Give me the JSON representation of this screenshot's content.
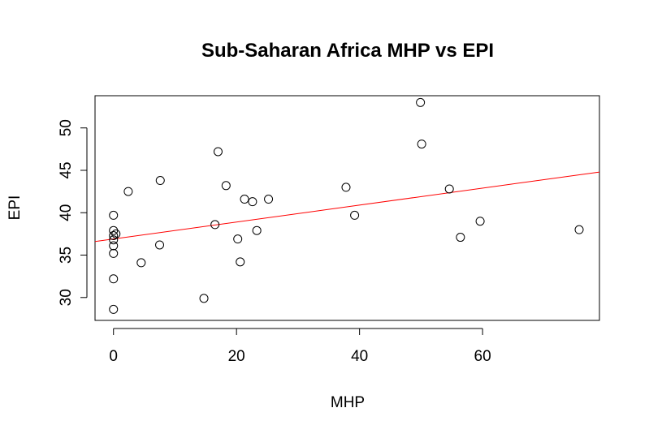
{
  "chart_data": {
    "type": "scatter",
    "title": "Sub-Saharan Africa MHP vs EPI",
    "xlabel": "MHP",
    "ylabel": "EPI",
    "xlim": [
      -3,
      79
    ],
    "ylim": [
      27.3,
      53.8
    ],
    "xticks": [
      0,
      20,
      40,
      60
    ],
    "yticks": [
      30,
      35,
      40,
      45,
      50
    ],
    "grid": false,
    "legend": "none",
    "points": [
      {
        "x": 0,
        "y": 28.6
      },
      {
        "x": 0,
        "y": 32.2
      },
      {
        "x": 0,
        "y": 35.2
      },
      {
        "x": 0,
        "y": 36.1
      },
      {
        "x": 0,
        "y": 36.8
      },
      {
        "x": 0,
        "y": 37.3
      },
      {
        "x": 0,
        "y": 37.9
      },
      {
        "x": 0,
        "y": 39.7
      },
      {
        "x": 0.4,
        "y": 37.5
      },
      {
        "x": 2.4,
        "y": 42.5
      },
      {
        "x": 4.5,
        "y": 34.1
      },
      {
        "x": 7.5,
        "y": 36.2
      },
      {
        "x": 7.6,
        "y": 43.8
      },
      {
        "x": 14.7,
        "y": 29.9
      },
      {
        "x": 16.5,
        "y": 38.6
      },
      {
        "x": 17.0,
        "y": 47.2
      },
      {
        "x": 18.3,
        "y": 43.2
      },
      {
        "x": 20.2,
        "y": 36.9
      },
      {
        "x": 20.6,
        "y": 34.2
      },
      {
        "x": 21.3,
        "y": 41.6
      },
      {
        "x": 22.6,
        "y": 41.3
      },
      {
        "x": 23.3,
        "y": 37.9
      },
      {
        "x": 25.2,
        "y": 41.6
      },
      {
        "x": 37.8,
        "y": 43.0
      },
      {
        "x": 39.2,
        "y": 39.7
      },
      {
        "x": 49.9,
        "y": 53.0
      },
      {
        "x": 50.1,
        "y": 48.1
      },
      {
        "x": 54.6,
        "y": 42.8
      },
      {
        "x": 56.4,
        "y": 37.1
      },
      {
        "x": 59.6,
        "y": 39.0
      },
      {
        "x": 75.7,
        "y": 38.0
      }
    ],
    "fit_line": {
      "intercept": 36.9,
      "slope": 0.1,
      "color": "#ff0000"
    }
  }
}
